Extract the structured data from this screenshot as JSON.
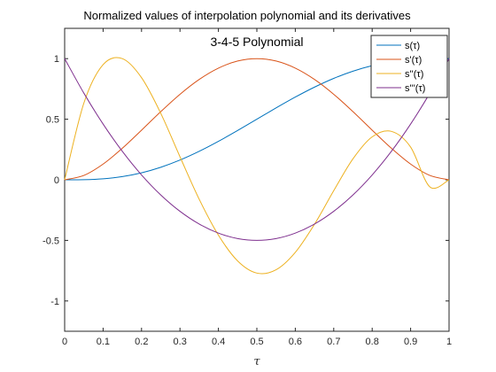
{
  "chart_data": {
    "type": "line",
    "title": "Normalized values of interpolation polynomial and its derivatives",
    "subtitle": "3-4-5 Polynomial",
    "xlabel": "τ",
    "ylabel": "",
    "xlim": [
      0,
      1
    ],
    "ylim": [
      -1.25,
      1.25
    ],
    "x_ticks": [
      "0",
      "0.1",
      "0.2",
      "0.3",
      "0.4",
      "0.5",
      "0.6",
      "0.7",
      "0.8",
      "0.9",
      "1"
    ],
    "y_ticks": [
      "1",
      "0.5",
      "0",
      "-0.5",
      "-1"
    ],
    "legend_position": "top-right",
    "grid": false,
    "x": [
      0,
      0.05,
      0.1,
      0.15,
      0.2,
      0.25,
      0.3,
      0.35,
      0.4,
      0.45,
      0.5,
      0.55,
      0.6,
      0.65,
      0.7,
      0.75,
      0.8,
      0.85,
      0.9,
      0.95,
      1
    ],
    "series": [
      {
        "name": "s(τ)",
        "color": "#0072BD",
        "values": [
          0,
          0.0012,
          0.0086,
          0.0266,
          0.0579,
          0.1035,
          0.1631,
          0.2352,
          0.3174,
          0.4069,
          0.5,
          0.5931,
          0.6826,
          0.7648,
          0.8369,
          0.8965,
          0.9421,
          0.9734,
          0.9914,
          0.9988,
          1
        ]
      },
      {
        "name": "s'(τ)",
        "color": "#D95319",
        "values": [
          0,
          0.0361,
          0.1296,
          0.2601,
          0.4096,
          0.5625,
          0.7056,
          0.8281,
          0.9216,
          0.9801,
          1,
          0.9801,
          0.9216,
          0.8281,
          0.7056,
          0.5625,
          0.4096,
          0.2601,
          0.1296,
          0.0361,
          0
        ]
      },
      {
        "name": "s''(τ)",
        "color": "#EDB120",
        "values": [
          0,
          0.6334,
          0.9506,
          1.0,
          0.8428,
          0.5488,
          0.1901,
          -0.1603,
          -0.4567,
          -0.6697,
          -0.7698,
          -0.7424,
          -0.5988,
          -0.3666,
          -0.0899,
          0.1732,
          0.3547,
          0.3998,
          0.27,
          -0.0584,
          -0.0
        ]
      },
      {
        "name": "s'''(τ)",
        "color": "#7E2F8E",
        "values": [
          1,
          0.715,
          0.46,
          0.235,
          0.04,
          -0.125,
          -0.26,
          -0.365,
          -0.44,
          -0.485,
          -0.5,
          -0.485,
          -0.44,
          -0.365,
          -0.26,
          -0.125,
          0.04,
          0.235,
          0.46,
          0.715,
          1
        ]
      }
    ]
  }
}
